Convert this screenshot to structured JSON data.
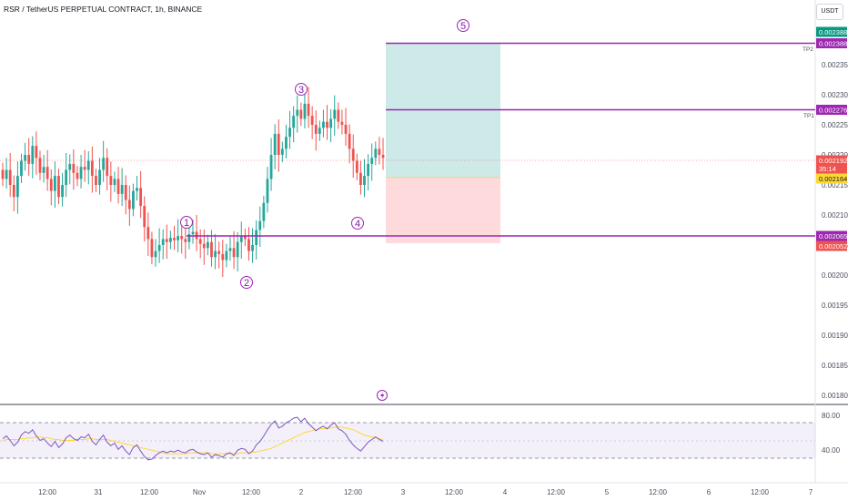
{
  "header": {
    "title": "RSR / TetherUS PERPETUAL CONTRACT, 1h, BINANCE",
    "currency": "USDT"
  },
  "colors": {
    "up": "#26a69a",
    "down": "#ef5350",
    "wave": "#9c27b0",
    "target_zone": "#b2dfdb",
    "stop_zone": "#ffcdd2",
    "rsi_line": "#7e57c2",
    "rsi_ma": "#fdd835"
  },
  "chart_data": [
    {
      "type": "candlestick",
      "title": "RSR / TetherUS PERPETUAL CONTRACT, 1h, BINANCE",
      "price_axis": {
        "ticks": [
          "0.002350",
          "0.002300",
          "0.002250",
          "0.002200",
          "0.002150",
          "0.002100",
          "0.002050",
          "0.002000",
          "0.001950",
          "0.001900",
          "0.001850",
          "0.001800"
        ],
        "range": [
          0.00179,
          0.00241
        ]
      },
      "time_axis": [
        "12:00",
        "31",
        "12:00",
        "Nov",
        "12:00",
        "2",
        "12:00",
        "3",
        "12:00",
        "4",
        "12:00",
        "5",
        "12:00",
        "6",
        "12:00",
        "7"
      ],
      "close_series": [
        0.00216,
        0.002175,
        0.00215,
        0.00213,
        0.002165,
        0.00219,
        0.0022,
        0.002185,
        0.002215,
        0.002195,
        0.00217,
        0.00218,
        0.00216,
        0.00214,
        0.002165,
        0.00213,
        0.00215,
        0.002175,
        0.002185,
        0.00217,
        0.00216,
        0.00218,
        0.002175,
        0.00219,
        0.002165,
        0.00215,
        0.002175,
        0.002195,
        0.002165,
        0.00215,
        0.00216,
        0.002135,
        0.00215,
        0.002125,
        0.00211,
        0.00214,
        0.002145,
        0.002115,
        0.00208,
        0.00206,
        0.00203,
        0.00204,
        0.00205,
        0.00206,
        0.002055,
        0.002062,
        0.002058,
        0.002065,
        0.00206,
        0.002055,
        0.002068,
        0.002072,
        0.00206,
        0.002052,
        0.002045,
        0.002055,
        0.00203,
        0.00204,
        0.002035,
        0.002025,
        0.00204,
        0.002045,
        0.00203,
        0.002055,
        0.002065,
        0.00206,
        0.00204,
        0.00205,
        0.002075,
        0.00209,
        0.00212,
        0.00216,
        0.0022,
        0.002235,
        0.0022,
        0.00221,
        0.00223,
        0.002245,
        0.002265,
        0.002275,
        0.00226,
        0.002285,
        0.002265,
        0.00225,
        0.002235,
        0.002245,
        0.002255,
        0.002245,
        0.00226,
        0.002275,
        0.002255,
        0.00225,
        0.002235,
        0.00221,
        0.00219,
        0.00217,
        0.00215,
        0.002165,
        0.002185,
        0.002195,
        0.00221,
        0.0022,
        0.002195
      ],
      "position": {
        "entry": 0.002164,
        "stop": 0.002052,
        "tp1": 0.002276,
        "tp2": 0.002388
      },
      "wave_labels": [
        "1",
        "2",
        "3",
        "4",
        "5"
      ],
      "horizontal_levels": [
        0.002388,
        0.002276,
        0.002065
      ],
      "price_tags": [
        {
          "value": "0.002388",
          "color": "#089981"
        },
        {
          "value": "0.002388",
          "color": "#9c27b0"
        },
        {
          "value": "0.002276",
          "color": "#9c27b0"
        },
        {
          "value": "0.002192",
          "color": "#ef5350"
        },
        {
          "value": "35:14",
          "color": "#ef5350"
        },
        {
          "value": "0.002164",
          "color": "#fdd835"
        },
        {
          "value": "0.002065",
          "color": "#9c27b0"
        },
        {
          "value": "0.002052",
          "color": "#ef5350"
        }
      ],
      "line_labels": [
        "TP2",
        "TP1"
      ]
    },
    {
      "type": "line",
      "title": "",
      "y_ticks": [
        "80.00",
        "40.00"
      ],
      "ylim": [
        25,
        95
      ],
      "bands": [
        70,
        50,
        30
      ],
      "series": [
        {
          "values": [
            52,
            55,
            50,
            44,
            48,
            56,
            60,
            58,
            62,
            55,
            50,
            52,
            47,
            43,
            49,
            42,
            46,
            53,
            56,
            52,
            50,
            54,
            53,
            57,
            49,
            45,
            51,
            56,
            48,
            44,
            47,
            40,
            44,
            38,
            34,
            42,
            45,
            38,
            32,
            28,
            29,
            33,
            36,
            38,
            36,
            38,
            37,
            39,
            37,
            36,
            39,
            40,
            37,
            35,
            34,
            36,
            31,
            34,
            33,
            31,
            35,
            36,
            33,
            39,
            41,
            40,
            35,
            38,
            45,
            49,
            55,
            62,
            68,
            72,
            64,
            66,
            70,
            72,
            75,
            76,
            71,
            75,
            69,
            65,
            61,
            64,
            66,
            63,
            67,
            70,
            63,
            61,
            57,
            50,
            45,
            41,
            38,
            43,
            48,
            51,
            54,
            51,
            49
          ]
        },
        {
          "values": [
            50,
            51,
            51,
            51,
            51,
            52,
            52,
            53,
            53,
            54,
            54,
            53,
            53,
            52,
            51,
            51,
            50,
            50,
            50,
            50,
            51,
            51,
            51,
            52,
            52,
            51,
            51,
            51,
            51,
            50,
            49,
            48,
            47,
            46,
            45,
            44,
            43,
            42,
            41,
            40,
            39,
            38,
            37,
            36,
            35,
            35,
            35,
            35,
            35,
            35,
            36,
            36,
            36,
            36,
            36,
            36,
            35,
            35,
            35,
            35,
            35,
            35,
            35,
            35,
            36,
            36,
            36,
            37,
            37,
            38,
            39,
            40,
            41,
            43,
            45,
            47,
            49,
            51,
            53,
            55,
            57,
            59,
            60,
            61,
            62,
            63,
            63,
            64,
            64,
            65,
            65,
            65,
            64,
            63,
            62,
            60,
            58,
            56,
            55,
            54,
            53,
            52,
            51
          ]
        }
      ]
    }
  ]
}
